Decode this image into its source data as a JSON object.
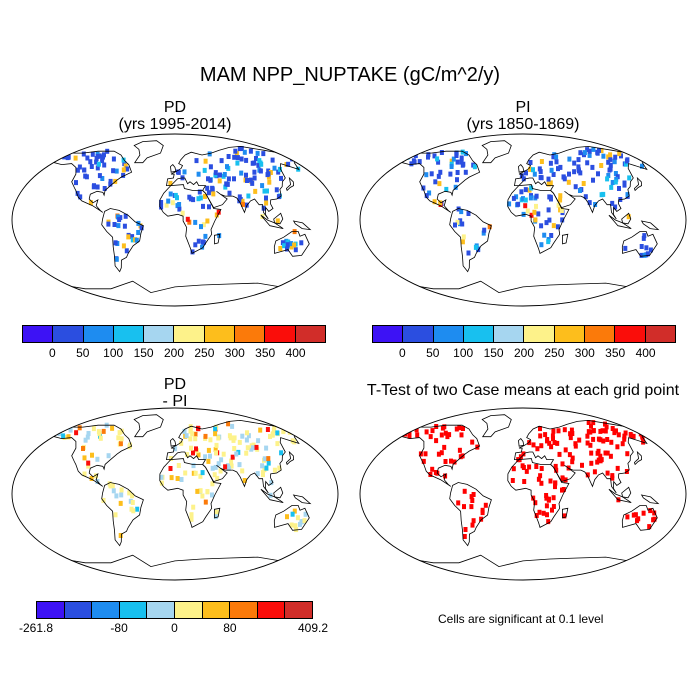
{
  "title": "MAM NPP_NUPTAKE (gC/m^2/y)",
  "panels": {
    "pd": {
      "title": "PD",
      "subtitle": "(yrs 1995-2014)"
    },
    "pi": {
      "title": "PI",
      "subtitle": "(yrs 1850-1869)"
    },
    "diff": {
      "title": "PD",
      "subtitle": "- PI"
    },
    "ttest": {
      "title": "T-Test of two Case means at each grid point",
      "note": "Cells are significant at 0.1 level"
    }
  },
  "colorbar_abs": {
    "colors": [
      "#3d12f5",
      "#2b4ee0",
      "#1e8cf0",
      "#18c0ef",
      "#a6d6f0",
      "#fdf28a",
      "#fdbe1c",
      "#fb7a0a",
      "#fa0d0a",
      "#d12d29"
    ],
    "ticks": [
      "0",
      "50",
      "100",
      "150",
      "200",
      "250",
      "300",
      "350",
      "400"
    ]
  },
  "colorbar_diff": {
    "colors": [
      "#3d12f5",
      "#2b4ee0",
      "#1e8cf0",
      "#18c0ef",
      "#a6d6f0",
      "#fdf28a",
      "#fdbe1c",
      "#fb7a0a",
      "#fa0d0a",
      "#d12d29"
    ],
    "ticks": [
      "-261.8",
      "-80",
      "0",
      "80",
      "409.2"
    ]
  },
  "ttest_color": "#ff0000"
}
